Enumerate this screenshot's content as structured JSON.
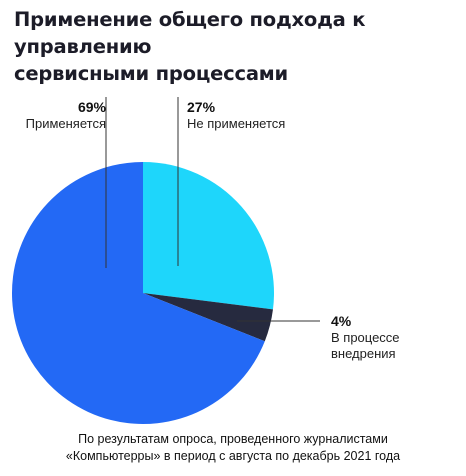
{
  "title_lines": [
    "Применение общего подхода к управлению",
    "сервисными процессами"
  ],
  "chart_data": {
    "type": "pie",
    "slices": [
      {
        "name": "Не применяется",
        "pct_label": "27%",
        "value": 27,
        "color": "#1ed6fb"
      },
      {
        "name": "В процессе внедрения",
        "pct_label": "4%",
        "value": 4,
        "color": "#262a3f"
      },
      {
        "name": "Применяется",
        "pct_label": "69%",
        "value": 69,
        "color": "#2369f5"
      }
    ]
  },
  "labels": {
    "applied": {
      "pct": "69%",
      "name": "Применяется"
    },
    "not_applied": {
      "pct": "27%",
      "name": "Не применяется"
    },
    "in_progress": {
      "pct": "4%",
      "name_lines": [
        "В процессе",
        "внедрения"
      ]
    }
  },
  "caption_lines": [
    "По результатам опроса, проведенного журналистами",
    "«Компьютерры» в период с августа по декабрь 2021 года"
  ]
}
